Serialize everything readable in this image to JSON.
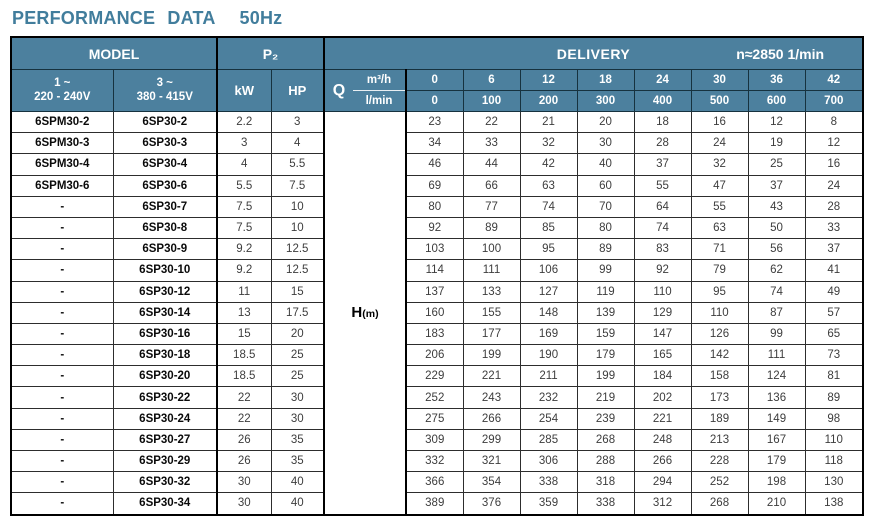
{
  "title": {
    "main": "PERFORMANCE  DATA",
    "frequency": "50Hz"
  },
  "colors": {
    "header_bg": "#4c809e",
    "title_text": "#417d9c",
    "grid_line": "#000000",
    "body_number_text": "#3d3d3d"
  },
  "header": {
    "model_label": "MODEL",
    "p2_label": "P₂",
    "delivery_label": "DELIVERY",
    "speed_label": "n≈2850 1/min",
    "single_phase_line1": "1 ~",
    "single_phase_line2": "220 - 240V",
    "three_phase_line1": "3 ~",
    "three_phase_line2": "380 - 415V",
    "kw_label": "kW",
    "hp_label": "HP",
    "q_label": "Q",
    "q_unit_top": "m³/h",
    "q_unit_bottom": "l/min",
    "flow_m3h": [
      "0",
      "6",
      "12",
      "18",
      "24",
      "30",
      "36",
      "42"
    ],
    "flow_lmin": [
      "0",
      "100",
      "200",
      "300",
      "400",
      "500",
      "600",
      "700"
    ]
  },
  "head_column": {
    "label": "H",
    "unit": "(m)"
  },
  "rows": [
    {
      "model_1ph": "6SPM30-2",
      "model_3ph": "6SP30-2",
      "kw": "2.2",
      "hp": "3",
      "head_m": [
        23,
        22,
        21,
        20,
        18,
        16,
        12,
        8
      ]
    },
    {
      "model_1ph": "6SPM30-3",
      "model_3ph": "6SP30-3",
      "kw": "3",
      "hp": "4",
      "head_m": [
        34,
        33,
        32,
        30,
        28,
        24,
        19,
        12
      ]
    },
    {
      "model_1ph": "6SPM30-4",
      "model_3ph": "6SP30-4",
      "kw": "4",
      "hp": "5.5",
      "head_m": [
        46,
        44,
        42,
        40,
        37,
        32,
        25,
        16
      ]
    },
    {
      "model_1ph": "6SPM30-6",
      "model_3ph": "6SP30-6",
      "kw": "5.5",
      "hp": "7.5",
      "head_m": [
        69,
        66,
        63,
        60,
        55,
        47,
        37,
        24
      ]
    },
    {
      "model_1ph": "-",
      "model_3ph": "6SP30-7",
      "kw": "7.5",
      "hp": "10",
      "head_m": [
        80,
        77,
        74,
        70,
        64,
        55,
        43,
        28
      ]
    },
    {
      "model_1ph": "-",
      "model_3ph": "6SP30-8",
      "kw": "7.5",
      "hp": "10",
      "head_m": [
        92,
        89,
        85,
        80,
        74,
        63,
        50,
        33
      ]
    },
    {
      "model_1ph": "-",
      "model_3ph": "6SP30-9",
      "kw": "9.2",
      "hp": "12.5",
      "head_m": [
        103,
        100,
        95,
        89,
        83,
        71,
        56,
        37
      ]
    },
    {
      "model_1ph": "-",
      "model_3ph": "6SP30-10",
      "kw": "9.2",
      "hp": "12.5",
      "head_m": [
        114,
        111,
        106,
        99,
        92,
        79,
        62,
        41
      ]
    },
    {
      "model_1ph": "-",
      "model_3ph": "6SP30-12",
      "kw": "11",
      "hp": "15",
      "head_m": [
        137,
        133,
        127,
        119,
        110,
        95,
        74,
        49
      ]
    },
    {
      "model_1ph": "-",
      "model_3ph": "6SP30-14",
      "kw": "13",
      "hp": "17.5",
      "head_m": [
        160,
        155,
        148,
        139,
        129,
        110,
        87,
        57
      ]
    },
    {
      "model_1ph": "-",
      "model_3ph": "6SP30-16",
      "kw": "15",
      "hp": "20",
      "head_m": [
        183,
        177,
        169,
        159,
        147,
        126,
        99,
        65
      ]
    },
    {
      "model_1ph": "-",
      "model_3ph": "6SP30-18",
      "kw": "18.5",
      "hp": "25",
      "head_m": [
        206,
        199,
        190,
        179,
        165,
        142,
        111,
        73
      ]
    },
    {
      "model_1ph": "-",
      "model_3ph": "6SP30-20",
      "kw": "18.5",
      "hp": "25",
      "head_m": [
        229,
        221,
        211,
        199,
        184,
        158,
        124,
        81
      ]
    },
    {
      "model_1ph": "-",
      "model_3ph": "6SP30-22",
      "kw": "22",
      "hp": "30",
      "head_m": [
        252,
        243,
        232,
        219,
        202,
        173,
        136,
        89
      ]
    },
    {
      "model_1ph": "-",
      "model_3ph": "6SP30-24",
      "kw": "22",
      "hp": "30",
      "head_m": [
        275,
        266,
        254,
        239,
        221,
        189,
        149,
        98
      ]
    },
    {
      "model_1ph": "-",
      "model_3ph": "6SP30-27",
      "kw": "26",
      "hp": "35",
      "head_m": [
        309,
        299,
        285,
        268,
        248,
        213,
        167,
        110
      ]
    },
    {
      "model_1ph": "-",
      "model_3ph": "6SP30-29",
      "kw": "26",
      "hp": "35",
      "head_m": [
        332,
        321,
        306,
        288,
        266,
        228,
        179,
        118
      ]
    },
    {
      "model_1ph": "-",
      "model_3ph": "6SP30-32",
      "kw": "30",
      "hp": "40",
      "head_m": [
        366,
        354,
        338,
        318,
        294,
        252,
        198,
        130
      ]
    },
    {
      "model_1ph": "-",
      "model_3ph": "6SP30-34",
      "kw": "30",
      "hp": "40",
      "head_m": [
        389,
        376,
        359,
        338,
        312,
        268,
        210,
        138
      ]
    }
  ]
}
